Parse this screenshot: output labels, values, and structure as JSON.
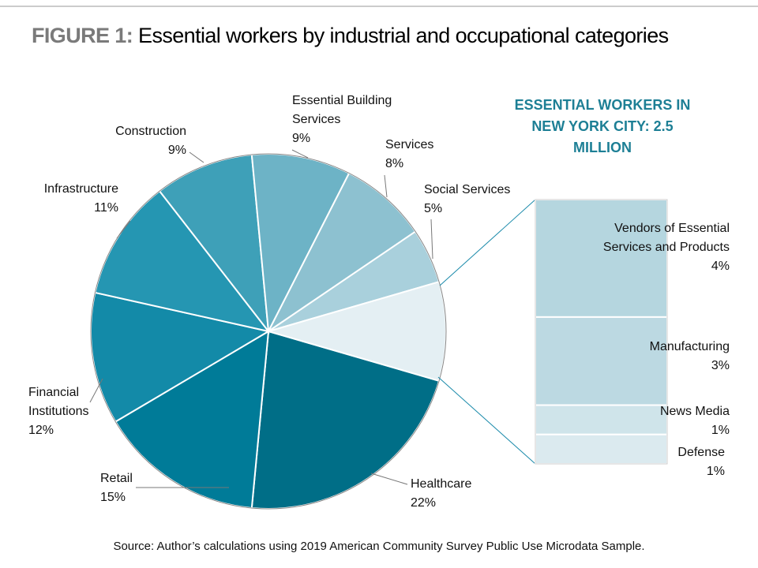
{
  "figure_label": "FIGURE 1:",
  "chart_data": {
    "type": "pie",
    "title": "Essential workers by industrial and occupational categories",
    "categories": [
      "Healthcare",
      "Retail",
      "Financial Institutions",
      "Infrastructure",
      "Construction",
      "Essential Building Services",
      "Services",
      "Social Services",
      null
    ],
    "values": [
      22,
      15,
      12,
      11,
      9,
      9,
      8,
      5,
      9
    ],
    "value_labels": [
      "22%",
      "15%",
      "12%",
      "11%",
      "9%",
      "9%",
      "8%",
      "5%",
      null
    ],
    "colors": [
      "#006e87",
      "#007b98",
      "#138aa8",
      "#2596b2",
      "#3ea0b8",
      "#6db3c6",
      "#8dc1d0",
      "#a9d0dc",
      "#e4eff3"
    ],
    "breakdown": {
      "title": "ESSENTIAL WORKERS IN NEW YORK CITY: 2.5 MILLION",
      "categories": [
        "Vendors of Essential Services and Products",
        "Manufacturing",
        "News Media",
        "Defense"
      ],
      "values": [
        4,
        3,
        1,
        1
      ],
      "value_labels": [
        "4%",
        "3%",
        "1%",
        "1%"
      ],
      "colors": [
        "#b5d6df",
        "#bcd9e2",
        "#cfe4ea",
        "#dbeaef"
      ]
    },
    "source": "Source: Author’s calculations using 2019 American Community Survey Public Use Microdata Sample."
  }
}
